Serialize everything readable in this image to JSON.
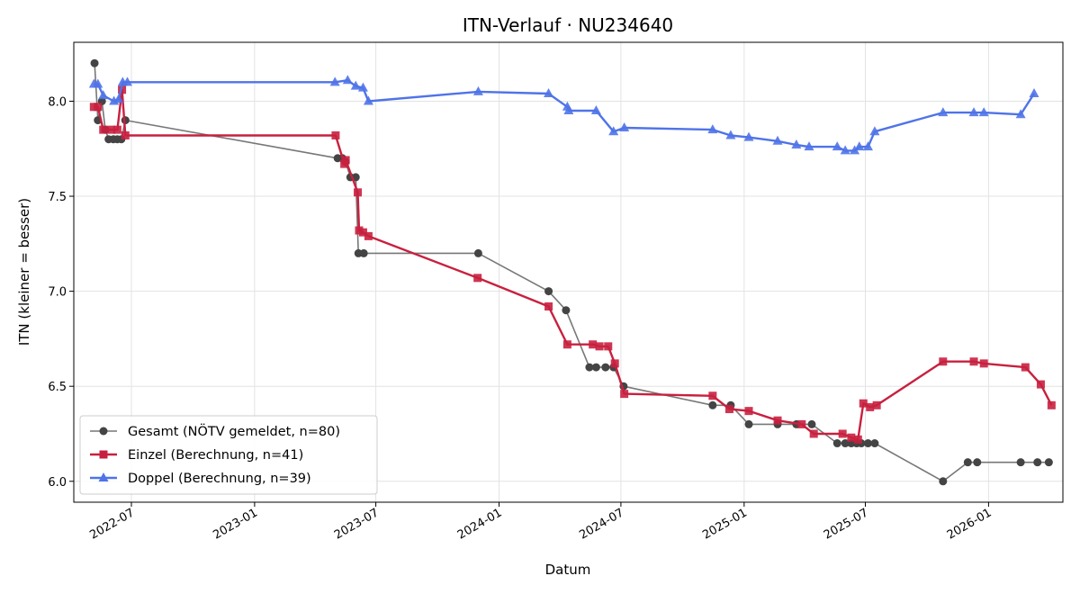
{
  "chart_data": {
    "type": "line",
    "title": "ITN-Verlauf · NU234640",
    "xlabel": "Datum",
    "ylabel": "ITN  (kleiner = besser)",
    "xlim": [
      "2022-04-06",
      "2026-04-22"
    ],
    "ylim": [
      5.89,
      8.31
    ],
    "grid": true,
    "legend_position": "lower-left",
    "x_ticks": [
      "2022-07",
      "2023-01",
      "2023-07",
      "2024-01",
      "2024-07",
      "2025-01",
      "2025-07",
      "2026-01"
    ],
    "y_ticks": [
      "6.0",
      "6.5",
      "7.0",
      "7.5",
      "8.0"
    ],
    "series": [
      {
        "name": "Gesamt (NÖTV gemeldet, n=80)",
        "color": "#444444",
        "marker": "circle",
        "points": [
          [
            "2022-05-07",
            8.2
          ],
          [
            "2022-05-12",
            7.9
          ],
          [
            "2022-05-18",
            8.0
          ],
          [
            "2022-05-23",
            7.85
          ],
          [
            "2022-05-28",
            7.8
          ],
          [
            "2022-06-04",
            7.8
          ],
          [
            "2022-06-10",
            7.8
          ],
          [
            "2022-06-16",
            7.8
          ],
          [
            "2022-06-22",
            7.9
          ],
          [
            "2023-05-05",
            7.7
          ],
          [
            "2023-05-12",
            7.7
          ],
          [
            "2023-05-17",
            7.68
          ],
          [
            "2023-05-24",
            7.6
          ],
          [
            "2023-06-01",
            7.6
          ],
          [
            "2023-06-05",
            7.2
          ],
          [
            "2023-06-13",
            7.2
          ],
          [
            "2023-12-01",
            7.2
          ],
          [
            "2024-03-15",
            7.0
          ],
          [
            "2024-04-10",
            6.9
          ],
          [
            "2024-05-15",
            6.6
          ],
          [
            "2024-05-25",
            6.6
          ],
          [
            "2024-06-08",
            6.6
          ],
          [
            "2024-06-20",
            6.6
          ],
          [
            "2024-07-05",
            6.5
          ],
          [
            "2024-11-15",
            6.4
          ],
          [
            "2024-12-12",
            6.4
          ],
          [
            "2025-01-08",
            6.3
          ],
          [
            "2025-02-20",
            6.3
          ],
          [
            "2025-03-20",
            6.3
          ],
          [
            "2025-04-12",
            6.3
          ],
          [
            "2025-05-20",
            6.2
          ],
          [
            "2025-06-01",
            6.2
          ],
          [
            "2025-06-10",
            6.2
          ],
          [
            "2025-06-18",
            6.2
          ],
          [
            "2025-06-25",
            6.2
          ],
          [
            "2025-07-05",
            6.2
          ],
          [
            "2025-07-15",
            6.2
          ],
          [
            "2025-10-25",
            6.0
          ],
          [
            "2025-12-01",
            6.1
          ],
          [
            "2025-12-15",
            6.1
          ],
          [
            "2026-02-18",
            6.1
          ],
          [
            "2026-03-15",
            6.1
          ],
          [
            "2026-04-01",
            6.1
          ]
        ]
      },
      {
        "name": "Einzel (Berechnung, n=41)",
        "color": "#c8203f",
        "marker": "square",
        "points": [
          [
            "2022-05-06",
            7.97
          ],
          [
            "2022-05-12",
            7.97
          ],
          [
            "2022-05-20",
            7.85
          ],
          [
            "2022-06-01",
            7.85
          ],
          [
            "2022-06-10",
            7.85
          ],
          [
            "2022-06-17",
            8.06
          ],
          [
            "2022-06-22",
            7.82
          ],
          [
            "2023-05-02",
            7.82
          ],
          [
            "2023-05-15",
            7.67
          ],
          [
            "2023-05-17",
            7.69
          ],
          [
            "2023-06-04",
            7.52
          ],
          [
            "2023-06-06",
            7.32
          ],
          [
            "2023-06-12",
            7.31
          ],
          [
            "2023-06-20",
            7.29
          ],
          [
            "2023-11-30",
            7.07
          ],
          [
            "2024-03-15",
            6.92
          ],
          [
            "2024-04-12",
            6.72
          ],
          [
            "2024-05-20",
            6.72
          ],
          [
            "2024-05-30",
            6.71
          ],
          [
            "2024-06-12",
            6.71
          ],
          [
            "2024-06-22",
            6.62
          ],
          [
            "2024-07-06",
            6.46
          ],
          [
            "2024-11-15",
            6.45
          ],
          [
            "2024-12-10",
            6.38
          ],
          [
            "2025-01-08",
            6.37
          ],
          [
            "2025-02-20",
            6.32
          ],
          [
            "2025-03-28",
            6.3
          ],
          [
            "2025-04-15",
            6.25
          ],
          [
            "2025-05-28",
            6.25
          ],
          [
            "2025-06-10",
            6.23
          ],
          [
            "2025-06-20",
            6.22
          ],
          [
            "2025-06-28",
            6.41
          ],
          [
            "2025-07-08",
            6.39
          ],
          [
            "2025-07-18",
            6.4
          ],
          [
            "2025-10-25",
            6.63
          ],
          [
            "2025-12-10",
            6.63
          ],
          [
            "2025-12-25",
            6.62
          ],
          [
            "2026-02-25",
            6.6
          ],
          [
            "2026-03-20",
            6.51
          ],
          [
            "2026-04-05",
            6.4
          ]
        ]
      },
      {
        "name": "Doppel (Berechnung, n=39)",
        "color": "#4f73e8",
        "marker": "triangle",
        "points": [
          [
            "2022-05-06",
            8.09
          ],
          [
            "2022-05-12",
            8.09
          ],
          [
            "2022-05-20",
            8.03
          ],
          [
            "2022-06-05",
            8.0
          ],
          [
            "2022-06-12",
            8.01
          ],
          [
            "2022-06-18",
            8.1
          ],
          [
            "2022-06-25",
            8.1
          ],
          [
            "2023-05-01",
            8.1
          ],
          [
            "2023-05-20",
            8.11
          ],
          [
            "2023-06-01",
            8.08
          ],
          [
            "2023-06-12",
            8.07
          ],
          [
            "2023-06-20",
            8.0
          ],
          [
            "2023-12-01",
            8.05
          ],
          [
            "2024-03-15",
            8.04
          ],
          [
            "2024-04-12",
            7.97
          ],
          [
            "2024-04-14",
            7.95
          ],
          [
            "2024-05-25",
            7.95
          ],
          [
            "2024-06-20",
            7.84
          ],
          [
            "2024-07-06",
            7.86
          ],
          [
            "2024-11-15",
            7.85
          ],
          [
            "2024-12-12",
            7.82
          ],
          [
            "2025-01-08",
            7.81
          ],
          [
            "2025-02-20",
            7.79
          ],
          [
            "2025-03-20",
            7.77
          ],
          [
            "2025-04-08",
            7.76
          ],
          [
            "2025-05-20",
            7.76
          ],
          [
            "2025-06-01",
            7.74
          ],
          [
            "2025-06-15",
            7.74
          ],
          [
            "2025-06-22",
            7.76
          ],
          [
            "2025-07-05",
            7.76
          ],
          [
            "2025-07-15",
            7.84
          ],
          [
            "2025-10-25",
            7.94
          ],
          [
            "2025-12-10",
            7.94
          ],
          [
            "2025-12-25",
            7.94
          ],
          [
            "2026-02-18",
            7.93
          ],
          [
            "2026-03-10",
            8.04
          ]
        ]
      }
    ]
  }
}
